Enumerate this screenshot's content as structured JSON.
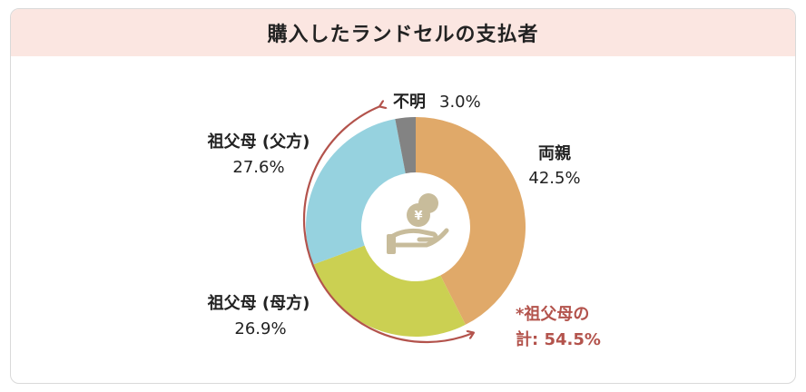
{
  "header": {
    "title": "購入したランドセルの支払者"
  },
  "chart_data": {
    "type": "pie",
    "title": "購入したランドセルの支払者",
    "slices": [
      {
        "label": "両親",
        "value": 42.5,
        "value_label": "42.5%",
        "color": "#e0a969"
      },
      {
        "label": "祖父母 (母方)",
        "value": 26.9,
        "value_label": "26.9%",
        "color": "#cbd052"
      },
      {
        "label": "祖父母 (父方)",
        "value": 27.6,
        "value_label": "27.6%",
        "color": "#96d2df"
      },
      {
        "label": "不明",
        "value": 3.0,
        "value_label": "3.0%",
        "color": "#838383"
      }
    ],
    "annotation": {
      "line1": "*祖父母の",
      "line2": "計: 54.5%",
      "color": "#b3534c"
    },
    "center_icon": "hand-with-yen-coin-icon",
    "icon_color": "#c8bc9b"
  }
}
